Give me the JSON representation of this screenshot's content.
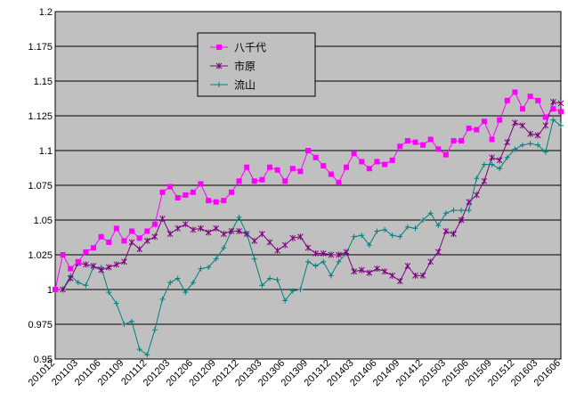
{
  "chart_data": {
    "type": "line",
    "ylim": [
      0.95,
      1.2
    ],
    "y_ticks": [
      "0.95",
      "0.975",
      "1",
      "1.025",
      "1.05",
      "1.075",
      "1.1",
      "1.125",
      "1.15",
      "1.175",
      "1.2"
    ],
    "x_labels": [
      "201012",
      "201103",
      "201106",
      "201109",
      "201112",
      "201203",
      "201206",
      "201209",
      "201212",
      "201303",
      "201306",
      "201309",
      "201312",
      "201403",
      "201406",
      "201409",
      "201412",
      "201503",
      "201506",
      "201509",
      "201512",
      "201603",
      "201606"
    ],
    "grid": "horizontal",
    "legend_position": "top-center",
    "plot_background": "#c0c0c0",
    "series": [
      {
        "name": "八千代",
        "color": "#ff00ff",
        "marker": "square",
        "values": [
          1.0,
          1.025,
          1.015,
          1.02,
          1.027,
          1.03,
          1.038,
          1.034,
          1.044,
          1.035,
          1.042,
          1.037,
          1.042,
          1.047,
          1.07,
          1.074,
          1.066,
          1.068,
          1.07,
          1.076,
          1.064,
          1.063,
          1.064,
          1.07,
          1.078,
          1.088,
          1.078,
          1.079,
          1.088,
          1.086,
          1.078,
          1.087,
          1.085,
          1.1,
          1.095,
          1.089,
          1.083,
          1.077,
          1.088,
          1.098,
          1.092,
          1.087,
          1.092,
          1.09,
          1.093,
          1.103,
          1.107,
          1.106,
          1.104,
          1.108,
          1.101,
          1.097,
          1.107,
          1.107,
          1.116,
          1.115,
          1.121,
          1.108,
          1.122,
          1.136,
          1.142,
          1.13,
          1.139,
          1.136,
          1.124,
          1.13,
          1.128
        ]
      },
      {
        "name": "市原",
        "color": "#800080",
        "marker": "star",
        "values": [
          1.0,
          1.0,
          1.008,
          1.019,
          1.018,
          1.017,
          1.014,
          1.016,
          1.018,
          1.02,
          1.034,
          1.029,
          1.035,
          1.038,
          1.051,
          1.04,
          1.044,
          1.047,
          1.043,
          1.044,
          1.041,
          1.044,
          1.04,
          1.042,
          1.042,
          1.04,
          1.035,
          1.04,
          1.034,
          1.028,
          1.032,
          1.037,
          1.038,
          1.03,
          1.026,
          1.026,
          1.025,
          1.025,
          1.027,
          1.013,
          1.014,
          1.012,
          1.015,
          1.013,
          1.01,
          1.006,
          1.017,
          1.01,
          1.01,
          1.02,
          1.027,
          1.042,
          1.04,
          1.05,
          1.063,
          1.068,
          1.078,
          1.095,
          1.093,
          1.106,
          1.12,
          1.118,
          1.112,
          1.111,
          1.118,
          1.135,
          1.134
        ]
      },
      {
        "name": "流山",
        "color": "#008080",
        "marker": "plus",
        "values": [
          1.0,
          1.0,
          1.01,
          1.005,
          1.003,
          1.016,
          1.016,
          0.998,
          0.99,
          0.975,
          0.977,
          0.957,
          0.953,
          0.971,
          0.993,
          1.005,
          1.008,
          0.998,
          1.005,
          1.015,
          1.016,
          1.022,
          1.03,
          1.042,
          1.052,
          1.04,
          1.022,
          1.003,
          1.008,
          1.007,
          0.992,
          0.999,
          1.0,
          1.02,
          1.017,
          1.02,
          1.01,
          1.02,
          1.026,
          1.038,
          1.039,
          1.032,
          1.042,
          1.043,
          1.039,
          1.038,
          1.045,
          1.044,
          1.05,
          1.055,
          1.046,
          1.055,
          1.057,
          1.057,
          1.057,
          1.08,
          1.09,
          1.09,
          1.087,
          1.095,
          1.101,
          1.104,
          1.105,
          1.104,
          1.099,
          1.122,
          1.118
        ]
      }
    ]
  }
}
